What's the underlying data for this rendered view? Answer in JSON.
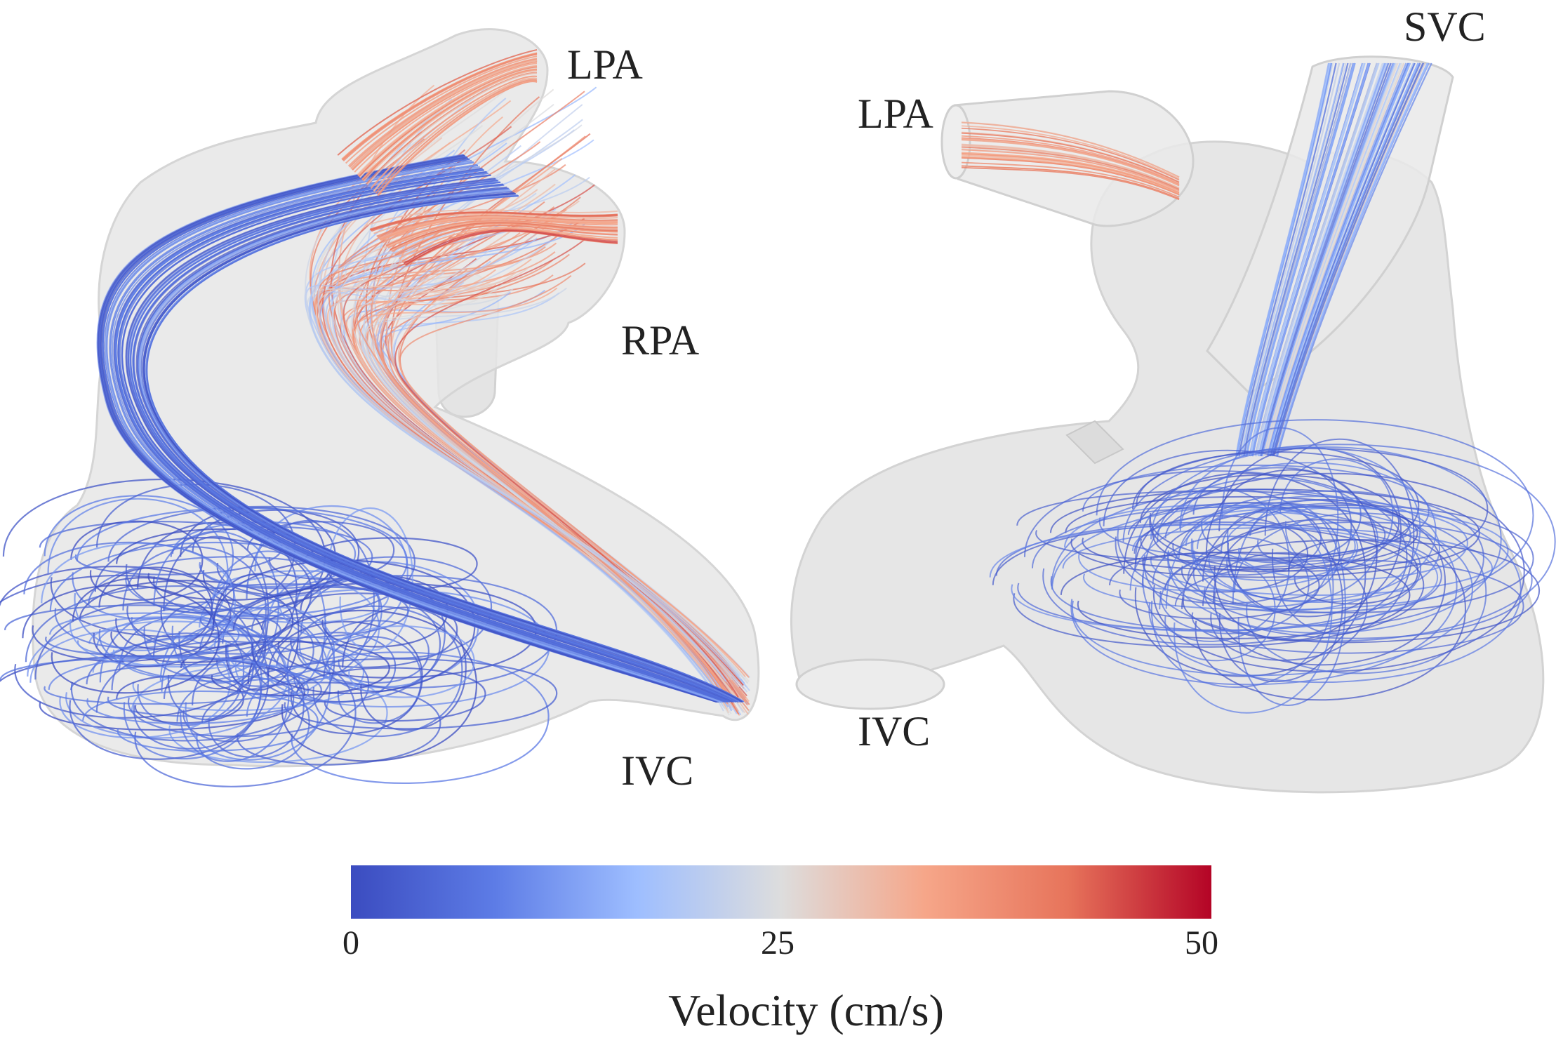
{
  "labels": {
    "left_lpa": "LPA",
    "left_rpa": "RPA",
    "left_ivc": "IVC",
    "right_lpa": "LPA",
    "right_svc": "SVC",
    "right_ivc": "IVC"
  },
  "colorbar": {
    "title": "Velocity (cm/s)",
    "min_label": "0",
    "mid_label": "25",
    "max_label": "50",
    "min": 0,
    "max": 50,
    "colors": [
      "#3b4cc0",
      "#5d7ce6",
      "#9ebeff",
      "#dddddd",
      "#f6a689",
      "#e7745b",
      "#b40426"
    ]
  },
  "colors": {
    "vessel_fill": "#e6e6e6",
    "vessel_edge": "#cfcfcf",
    "slow": "#3b4cc0",
    "medium": "#8a8f9a",
    "fast": "#d0654e"
  }
}
